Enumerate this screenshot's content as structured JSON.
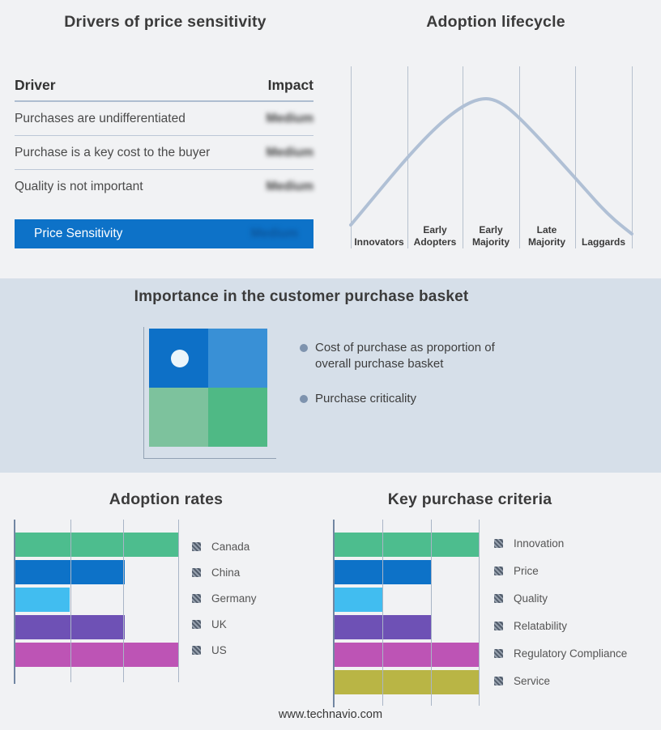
{
  "page": {
    "background": "#f1f2f4",
    "band_background": "#d6dfe9",
    "accent_blue": "#0d72c8",
    "footer": "www.technavio.com"
  },
  "purchase_basket": {
    "title": "Importance in the customer purchase basket",
    "bullets": [
      "Cost of purchase as proportion of overall purchase basket",
      "Purchase criticality"
    ],
    "quadrant_colors": {
      "top_left": "#0d70c7",
      "top_right": "#3990d6",
      "bottom_left": "#7dc29d",
      "bottom_right": "#4fb985"
    }
  },
  "chart_data": [
    {
      "type": "table",
      "title": "Drivers of price sensitivity",
      "columns": [
        "Driver",
        "Impact"
      ],
      "rows": [
        [
          "Purchases are undifferentiated",
          "Medium"
        ],
        [
          "Purchase is a key cost to the buyer",
          "Medium"
        ],
        [
          "Quality is not important",
          "Medium"
        ],
        [
          "Price Sensitivity",
          "Medium"
        ]
      ],
      "impact_values_blurred": true,
      "highlight_last_row_background": "#0d72c8"
    },
    {
      "type": "line",
      "title": "Adoption lifecycle",
      "categories": [
        "Innovators",
        "Early Adopters",
        "Early Majority",
        "Late Majority",
        "Laggards"
      ],
      "shape": "bell curve rising from Innovators, peaking at Early Majority, falling to Laggards",
      "curve_color": "#b0c0d5",
      "grid": "vertical stage dividers"
    },
    {
      "type": "bar",
      "orientation": "horizontal",
      "title": "Adoption rates",
      "categories": [
        "Canada",
        "China",
        "Germany",
        "UK",
        "US"
      ],
      "values": [
        3,
        2,
        1,
        2,
        3
      ],
      "xlim": [
        0,
        3
      ],
      "units": "relative length in gridline units (no numeric axis labels shown)",
      "colors": [
        "#4dbd8e",
        "#0d72c8",
        "#41bdf0",
        "#6e51b5",
        "#bd54b5"
      ],
      "legend_position": "right",
      "gridlines": true
    },
    {
      "type": "bar",
      "orientation": "horizontal",
      "title": "Key purchase criteria",
      "categories": [
        "Innovation",
        "Price",
        "Quality",
        "Relatability",
        "Regulatory Compliance",
        "Service"
      ],
      "values": [
        3,
        2,
        1,
        2,
        3,
        3
      ],
      "xlim": [
        0,
        3
      ],
      "units": "relative length in gridline units (no numeric axis labels shown)",
      "colors": [
        "#4dbd8e",
        "#0d72c8",
        "#41bdf0",
        "#6e51b5",
        "#bd54b5",
        "#b9b545"
      ],
      "legend_position": "right",
      "gridlines": true
    }
  ]
}
